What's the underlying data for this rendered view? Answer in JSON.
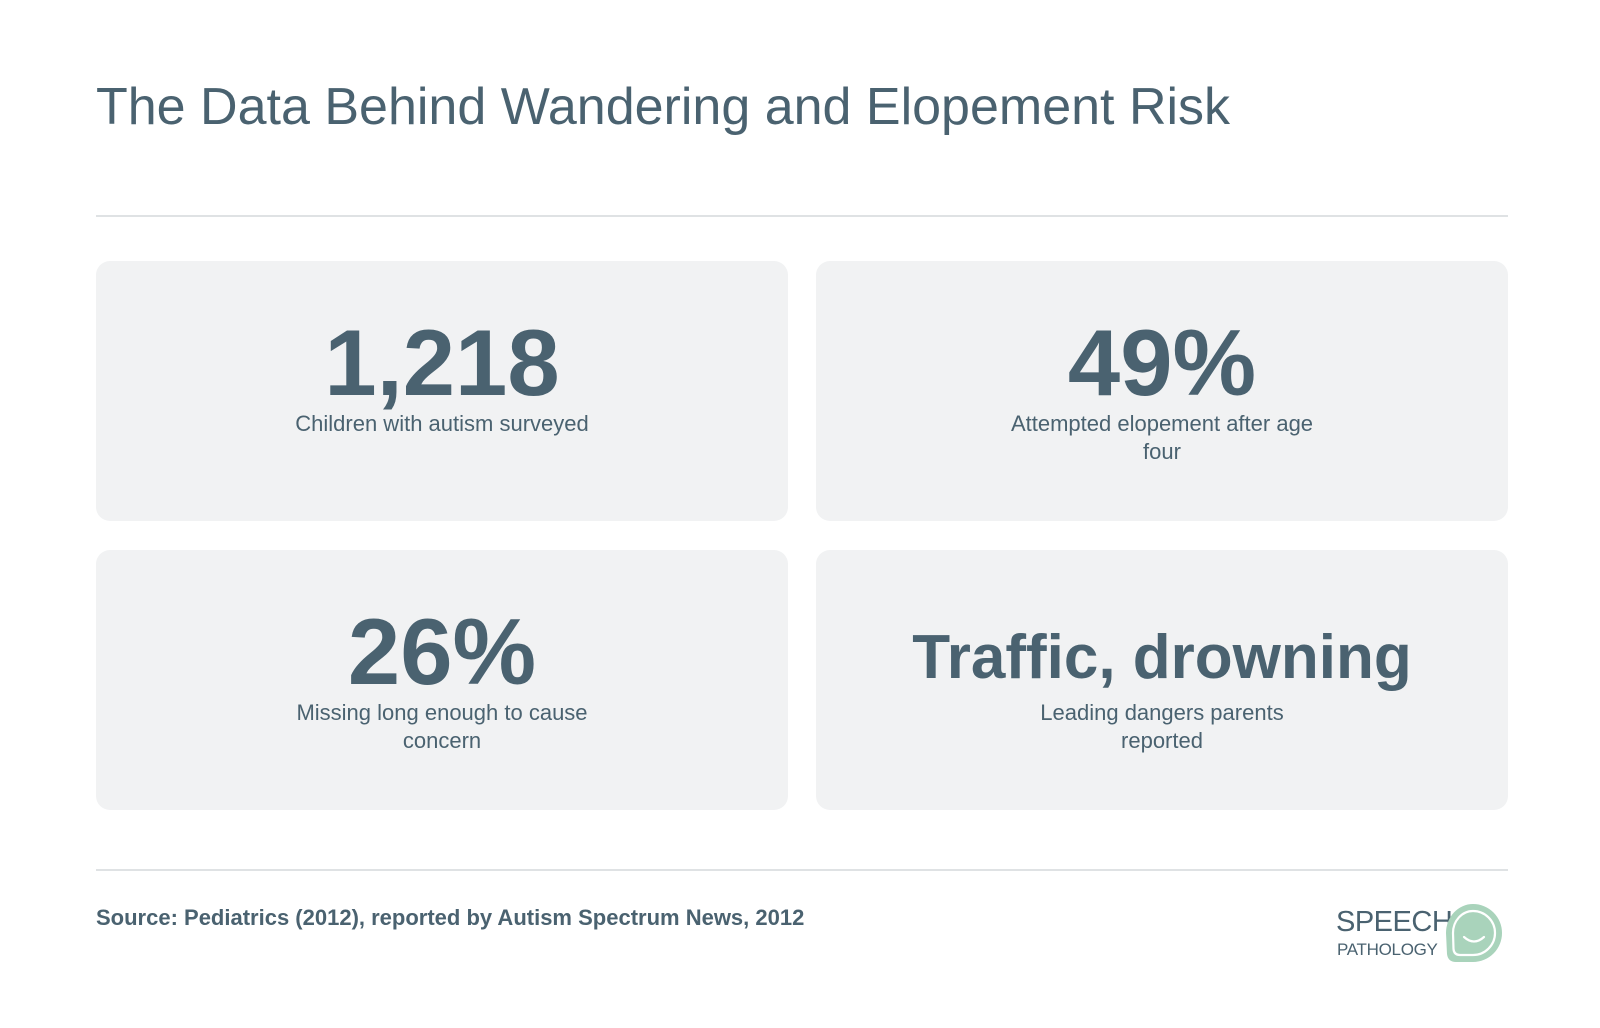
{
  "title": "The Data Behind Wandering and Elopement Risk",
  "stats": [
    {
      "value": "1,218",
      "label": "Children with autism surveyed"
    },
    {
      "value": "49%",
      "label": "Attempted elopement after age four"
    },
    {
      "value": "26%",
      "label": "Missing long enough to cause concern"
    },
    {
      "value": "Traffic, drowning",
      "label": "Leading dangers parents reported"
    }
  ],
  "source": "Source: Pediatrics (2012), reported by Autism Spectrum News, 2012",
  "logo": {
    "line1": "SPEECH",
    "line2": "PATHOLOGY",
    "icon": "speech-bubble-smile-icon"
  },
  "colors": {
    "text": "#4a6270",
    "card_background": "#f1f2f3",
    "divider": "#dfe2e4",
    "logo_accent": "#a9d3bb"
  }
}
